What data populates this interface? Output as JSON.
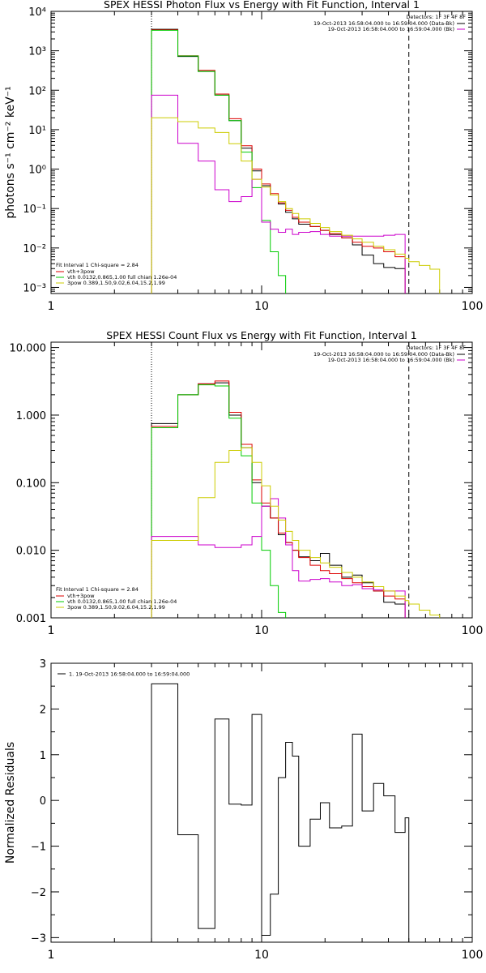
{
  "chart_data": [
    {
      "type": "line",
      "title": "SPEX HESSI Photon Flux vs Energy with Fit Function, Interval 1",
      "ylabel": "photons s⁻¹ cm⁻² keV⁻¹",
      "xlabel": "",
      "xscale": "log",
      "yscale": "log",
      "xlim": [
        1,
        100
      ],
      "ylim": [
        0.0007,
        10000
      ],
      "x_ticks": [
        1,
        10,
        100
      ],
      "x_tick_labels": [
        "1",
        "10",
        "100"
      ],
      "y_ticks": [
        0.001,
        0.01,
        0.1,
        1,
        10,
        100,
        1000,
        10000
      ],
      "y_tick_labels": [
        "10⁻³",
        "10⁻²",
        "10⁻¹",
        "10⁰",
        "10¹",
        "10²",
        "10³",
        "10⁴"
      ],
      "vlines": [
        {
          "x": 3,
          "style": "dotted"
        },
        {
          "x": 50,
          "style": "dashed"
        }
      ],
      "legend_top": {
        "header": "Detectors: 1F 3F 4F 8F",
        "entries": [
          {
            "text": "19-Oct-2013 16:58:04.000 to 16:59:04.000 (Data-Bk)",
            "color": "#000000"
          },
          {
            "text": "19-Oct-2013 16:58:04.000 to 16:59:04.000 (Bk)",
            "color": "#cc00cc"
          }
        ]
      },
      "legend_bottom": {
        "header": "Fit Interval 1    Chi-square = 2.84",
        "entries": [
          {
            "text": "vth+3pow",
            "color": "#dd0000"
          },
          {
            "text": "vth 0.0132,0.865,1.00   full chian 1.26e-04",
            "color": "#00cc00"
          },
          {
            "text": "3pow 0.389,1.50,9.02,6.04,15.2,1.99",
            "color": "#cccc00"
          }
        ]
      },
      "edges": [
        3,
        4,
        5,
        6,
        7,
        8,
        9,
        10,
        11,
        12,
        13,
        14,
        15,
        17,
        19,
        21,
        24,
        27,
        30,
        34,
        38,
        43,
        48,
        50,
        56,
        63,
        70,
        80,
        90,
        100
      ],
      "series": [
        {
          "color": "#000000",
          "values": [
            3500,
            720,
            300,
            75,
            17,
            3.4,
            0.9,
            0.38,
            0.22,
            0.13,
            0.08,
            0.055,
            0.04,
            0.035,
            0.028,
            0.022,
            0.018,
            0.012,
            0.0066,
            0.004,
            0.0032,
            0.003
          ]
        },
        {
          "color": "#dd0000",
          "values": [
            3400,
            750,
            320,
            80,
            19,
            3.9,
            1.0,
            0.42,
            0.24,
            0.14,
            0.09,
            0.06,
            0.045,
            0.035,
            0.028,
            0.023,
            0.018,
            0.014,
            0.011,
            0.01,
            0.008,
            0.006
          ]
        },
        {
          "color": "#00cc00",
          "values": [
            3300,
            740,
            300,
            75,
            17,
            2.7,
            0.34,
            0.05,
            0.008,
            0.002,
            0.0006
          ]
        },
        {
          "color": "#cc00cc",
          "values": [
            75,
            4.5,
            1.6,
            0.3,
            0.15,
            0.2,
            0.55,
            0.045,
            0.03,
            0.025,
            0.03,
            0.022,
            0.025,
            0.026,
            0.022,
            0.02,
            0.02,
            0.02,
            0.02,
            0.02,
            0.021,
            0.022
          ]
        },
        {
          "color": "#cccc00",
          "values": [
            20,
            16,
            11,
            8.5,
            4.4,
            1.6,
            0.55,
            0.35,
            0.22,
            0.15,
            0.1,
            0.075,
            0.055,
            0.042,
            0.033,
            0.026,
            0.021,
            0.017,
            0.014,
            0.011,
            0.009,
            0.007,
            0.0055,
            0.0045,
            0.0036,
            0.0029
          ]
        }
      ]
    },
    {
      "type": "line",
      "title": "SPEX HESSI Count Flux vs Energy with Fit Function, Interval 1",
      "ylabel": "",
      "xlabel": "",
      "xscale": "log",
      "yscale": "log",
      "xlim": [
        1,
        100
      ],
      "ylim": [
        0.001,
        12
      ],
      "x_ticks": [
        1,
        10,
        100
      ],
      "x_tick_labels": [
        "1",
        "10",
        "100"
      ],
      "y_ticks": [
        0.001,
        0.01,
        0.1,
        1,
        10
      ],
      "y_tick_labels": [
        "0.001",
        "0.010",
        "0.100",
        "1.000",
        "10.000"
      ],
      "vlines": [
        {
          "x": 3,
          "style": "dotted"
        },
        {
          "x": 50,
          "style": "dashed"
        }
      ],
      "legend_top": {
        "header": "Detectors: 1F 3F 4F 8F",
        "entries": [
          {
            "text": "19-Oct-2013 16:58:04.000 to 16:59:04.000 (Data-Bk)",
            "color": "#000000"
          },
          {
            "text": "19-Oct-2013 16:58:04.000 to 16:59:04.000 (Bk)",
            "color": "#cc00cc"
          }
        ]
      },
      "legend_bottom": {
        "header": "Fit Interval 1    Chi-square = 2.84",
        "entries": [
          {
            "text": "vth+3pow",
            "color": "#dd0000"
          },
          {
            "text": "vth 0.0132,0.865,1.00   full chian 1.26e-04",
            "color": "#00cc00"
          },
          {
            "text": "3pow 0.389,1.50,9.02,6.04,15.2,1.99",
            "color": "#cccc00"
          }
        ]
      },
      "edges": [
        3,
        4,
        5,
        6,
        7,
        8,
        9,
        10,
        11,
        12,
        13,
        14,
        15,
        17,
        19,
        21,
        24,
        27,
        30,
        34,
        38,
        43,
        48,
        50,
        56,
        63,
        70,
        80,
        90,
        100
      ],
      "series": [
        {
          "color": "#000000",
          "values": [
            0.75,
            2.0,
            2.9,
            3.0,
            1.0,
            0.33,
            0.1,
            0.045,
            0.03,
            0.017,
            0.013,
            0.01,
            0.008,
            0.007,
            0.009,
            0.006,
            0.004,
            0.0043,
            0.0033,
            0.0025,
            0.0017,
            0.0016
          ]
        },
        {
          "color": "#dd0000",
          "values": [
            0.68,
            2.0,
            2.9,
            3.2,
            1.1,
            0.37,
            0.11,
            0.05,
            0.03,
            0.018,
            0.013,
            0.01,
            0.0078,
            0.006,
            0.005,
            0.0045,
            0.0038,
            0.0033,
            0.0029,
            0.0025,
            0.0021,
            0.0019
          ]
        },
        {
          "color": "#00cc00",
          "values": [
            0.65,
            2.0,
            2.8,
            2.7,
            0.9,
            0.25,
            0.05,
            0.01,
            0.003,
            0.0012,
            0.0007
          ]
        },
        {
          "color": "#cc00cc",
          "values": [
            0.016,
            0.016,
            0.012,
            0.011,
            0.011,
            0.012,
            0.016,
            0.045,
            0.058,
            0.03,
            0.012,
            0.005,
            0.0035,
            0.0037,
            0.0038,
            0.0034,
            0.003,
            0.0031,
            0.0027,
            0.0026,
            0.0025,
            0.0025
          ]
        },
        {
          "color": "#cccc00",
          "values": [
            0.014,
            0.014,
            0.06,
            0.2,
            0.3,
            0.33,
            0.2,
            0.09,
            0.045,
            0.028,
            0.019,
            0.014,
            0.01,
            0.0078,
            0.0065,
            0.0056,
            0.0047,
            0.004,
            0.0034,
            0.0029,
            0.0025,
            0.0021,
            0.0018,
            0.0016,
            0.0013,
            0.0011,
            0.0009
          ]
        }
      ]
    },
    {
      "type": "line",
      "title": "",
      "ylabel": "Normalized Residuals",
      "xlabel": "",
      "xscale": "log",
      "yscale": "linear",
      "xlim": [
        1,
        100
      ],
      "ylim": [
        -3.1,
        3
      ],
      "x_ticks": [
        1,
        10,
        100
      ],
      "x_tick_labels": [
        "1",
        "10",
        "100"
      ],
      "y_ticks": [
        -3,
        -2,
        -1,
        0,
        1,
        2,
        3
      ],
      "y_tick_labels": [
        "−3",
        "−2",
        "−1",
        "0",
        "1",
        "2",
        "3"
      ],
      "legend_top": {
        "header": "",
        "entries": [
          {
            "text": "1. 19-Oct-2013 16:58:04.000 to 16:59:04.000",
            "color": "#000000"
          }
        ]
      },
      "edges": [
        3,
        4,
        5,
        6,
        7,
        8,
        9,
        10,
        11,
        12,
        13,
        14,
        15,
        17,
        19,
        21,
        24,
        27,
        30,
        34,
        38,
        43,
        48,
        50
      ],
      "series": [
        {
          "color": "#000000",
          "values": [
            2.55,
            -0.75,
            -2.8,
            1.78,
            -0.08,
            -0.1,
            1.88,
            -2.95,
            -2.05,
            0.5,
            1.27,
            0.97,
            -1.0,
            -0.41,
            -0.05,
            -0.6,
            -0.56,
            1.45,
            -0.23,
            0.37,
            0.1,
            -0.7,
            -0.38
          ]
        }
      ]
    }
  ]
}
